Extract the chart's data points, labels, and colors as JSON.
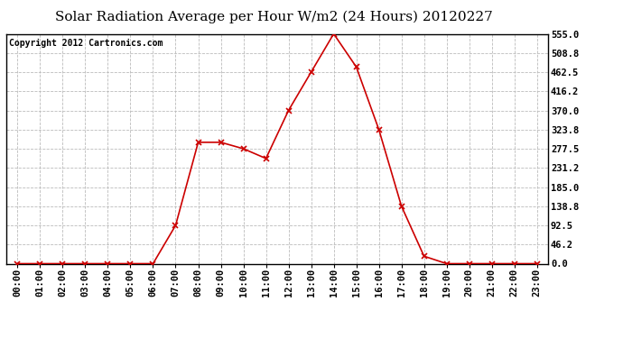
{
  "title": "Solar Radiation Average per Hour W/m2 (24 Hours) 20120227",
  "copyright_text": "Copyright 2012 Cartronics.com",
  "x_labels": [
    "00:00",
    "01:00",
    "02:00",
    "03:00",
    "04:00",
    "05:00",
    "06:00",
    "07:00",
    "08:00",
    "09:00",
    "10:00",
    "11:00",
    "12:00",
    "13:00",
    "14:00",
    "15:00",
    "16:00",
    "17:00",
    "18:00",
    "19:00",
    "20:00",
    "21:00",
    "22:00",
    "23:00"
  ],
  "y_values": [
    0.0,
    0.0,
    0.0,
    0.0,
    0.0,
    0.0,
    0.0,
    92.5,
    293.0,
    293.0,
    277.5,
    254.0,
    370.0,
    462.5,
    555.0,
    475.0,
    323.8,
    138.8,
    18.0,
    0.0,
    0.0,
    0.0,
    0.0,
    0.0
  ],
  "y_ticks": [
    0.0,
    46.2,
    92.5,
    138.8,
    185.0,
    231.2,
    277.5,
    323.8,
    370.0,
    416.2,
    462.5,
    508.8,
    555.0
  ],
  "y_min": 0.0,
  "y_max": 555.0,
  "line_color": "#cc0000",
  "background_color": "#ffffff",
  "grid_color": "#bbbbbb",
  "grid_style": "--",
  "title_fontsize": 11,
  "copyright_fontsize": 7,
  "tick_fontsize": 7.5
}
